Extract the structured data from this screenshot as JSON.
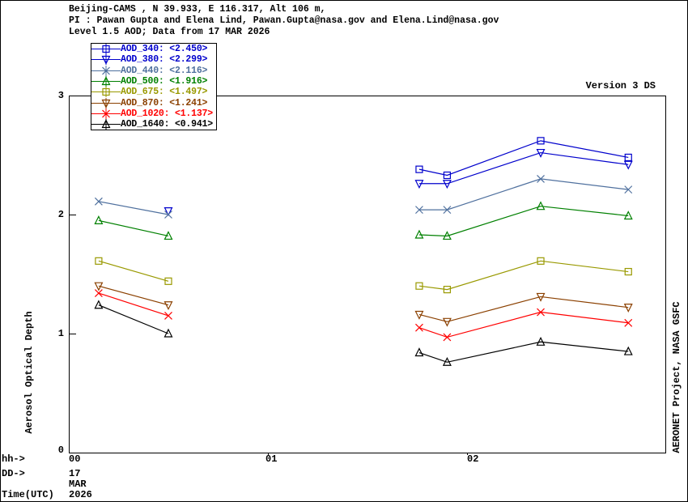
{
  "header": {
    "line1": "Beijing-CAMS , N 39.933, E 116.317, Alt 106 m,",
    "line2": "PI : Pawan Gupta and Elena Lind, Pawan.Gupta@nasa.gov and Elena.Lind@nasa.gov",
    "line3": "Level 1.5 AOD; Data from 17 MAR 2026"
  },
  "version_label": "Version 3 DS",
  "ylabel": "Aerosol Optical Depth",
  "right_label": "AERONET Project, NASA GSFC",
  "bottom_axis": {
    "hh_label": "hh->",
    "dd_label": "DD->",
    "time_label": "Time(UTC)",
    "day": "17",
    "month": "MAR",
    "year": "2026",
    "hour_ticks": [
      "00",
      "01",
      "02"
    ]
  },
  "chart_data": {
    "type": "line",
    "title": "Beijing-CAMS Level 1.5 AOD, 17 MAR 2026",
    "xlabel": "Time(UTC)",
    "ylabel": "Aerosol Optical Depth",
    "ylim": [
      0,
      3
    ],
    "xlim_hours": [
      0,
      3
    ],
    "grid": false,
    "legend_position": "top-left",
    "y_tick_labels": [
      "3",
      "2",
      "1",
      "0"
    ],
    "y_tick_values": [
      3,
      2,
      1,
      0
    ],
    "x_tick_hours": [
      0,
      1,
      2
    ],
    "x_hours": [
      0.15,
      0.5,
      1.76,
      1.9,
      2.37,
      2.81
    ],
    "clusters": [
      [
        0,
        1
      ],
      [
        2,
        3,
        4,
        5
      ]
    ],
    "series": [
      {
        "name": "AOD_340",
        "legend": "AOD_340: <2.450>",
        "mean": 2.45,
        "color": "#0000cc",
        "marker": "square",
        "values": [
          null,
          null,
          2.38,
          2.33,
          2.62,
          2.48
        ]
      },
      {
        "name": "AOD_380",
        "legend": "AOD_380: <2.299>",
        "mean": 2.299,
        "color": "#0000cc",
        "marker": "triangle-down",
        "values": [
          null,
          2.03,
          2.26,
          2.26,
          2.52,
          2.42
        ]
      },
      {
        "name": "AOD_440",
        "legend": "AOD_440: <2.116>",
        "mean": 2.116,
        "color": "#4f709e",
        "marker": "x",
        "values": [
          2.11,
          2.0,
          2.04,
          2.04,
          2.3,
          2.21
        ]
      },
      {
        "name": "AOD_500",
        "legend": "AOD_500: <1.916>",
        "mean": 1.916,
        "color": "#008000",
        "marker": "triangle-up",
        "values": [
          1.95,
          1.82,
          1.83,
          1.82,
          2.07,
          1.99
        ]
      },
      {
        "name": "AOD_675",
        "legend": "AOD_675: <1.497>",
        "mean": 1.497,
        "color": "#999900",
        "marker": "square",
        "values": [
          1.61,
          1.44,
          1.4,
          1.37,
          1.61,
          1.52
        ]
      },
      {
        "name": "AOD_870",
        "legend": "AOD_870: <1.241>",
        "mean": 1.241,
        "color": "#8b4000",
        "marker": "triangle-down",
        "values": [
          1.4,
          1.24,
          1.16,
          1.1,
          1.31,
          1.22
        ]
      },
      {
        "name": "AOD_1020",
        "legend": "AOD_1020: <1.137>",
        "mean": 1.137,
        "color": "#ff0000",
        "marker": "x",
        "values": [
          1.34,
          1.15,
          1.05,
          0.97,
          1.18,
          1.09
        ]
      },
      {
        "name": "AOD_1640",
        "legend": "AOD_1640: <0.941>",
        "mean": 0.941,
        "color": "#000000",
        "marker": "triangle-up",
        "values": [
          1.24,
          1.0,
          0.84,
          0.76,
          0.93,
          0.85
        ]
      }
    ]
  }
}
